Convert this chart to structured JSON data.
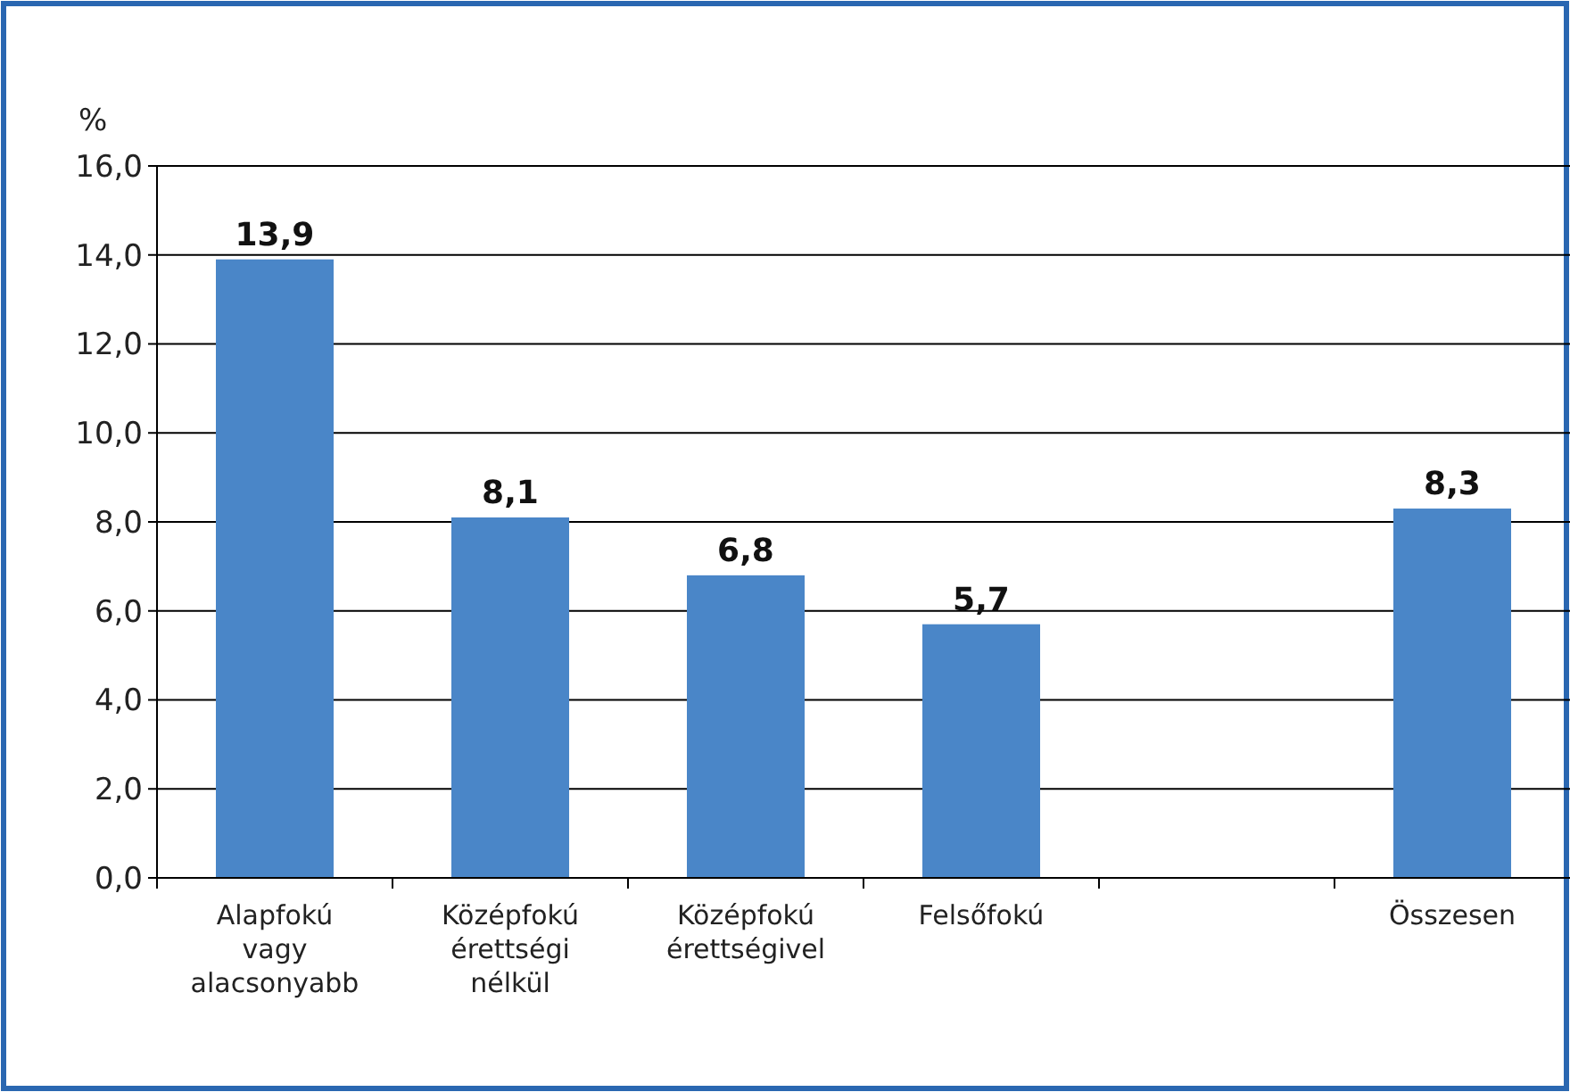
{
  "chart_data": {
    "type": "bar",
    "ylabel": "%",
    "categories": [
      "Alapfokú vagy alacsonyabb",
      "Középfokú érettségi nélkül",
      "Középfokú érettségivel",
      "Felsőfokú",
      null,
      "Összesen"
    ],
    "values": [
      13.9,
      8.1,
      6.8,
      5.7,
      null,
      8.3
    ],
    "value_labels": [
      "13,9",
      "8,1",
      "6,8",
      "5,7",
      null,
      "8,3"
    ],
    "color": "#4a86c8",
    "ylim": [
      0,
      16
    ],
    "yticks": [
      {
        "value": 0,
        "label": "0,0"
      },
      {
        "value": 2,
        "label": "2,0"
      },
      {
        "value": 4,
        "label": "4,0"
      },
      {
        "value": 6,
        "label": "6,0"
      },
      {
        "value": 8,
        "label": "8,0"
      },
      {
        "value": 10,
        "label": "10,0"
      },
      {
        "value": 12,
        "label": "12,0"
      },
      {
        "value": 14,
        "label": "14,0"
      },
      {
        "value": 16,
        "label": "16,0"
      }
    ],
    "grid": "y"
  }
}
